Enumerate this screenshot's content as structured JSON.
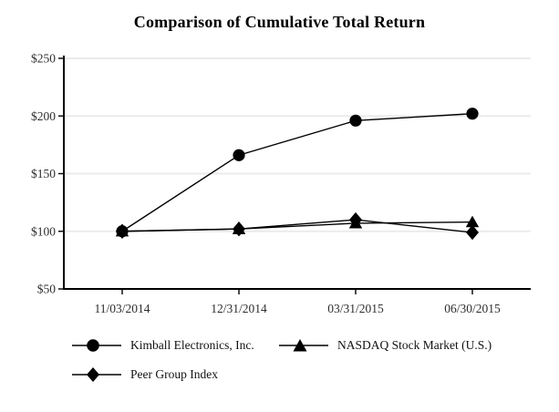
{
  "title": "Comparison of Cumulative Total Return",
  "chart_data": {
    "type": "line",
    "categories": [
      "11/03/2014",
      "12/31/2014",
      "03/31/2015",
      "06/30/2015"
    ],
    "series": [
      {
        "name": "Kimball Electronics, Inc.",
        "marker": "circle",
        "values": [
          100,
          166,
          196,
          202
        ]
      },
      {
        "name": "NASDAQ Stock Market (U.S.)",
        "marker": "triangle",
        "values": [
          100,
          102,
          107,
          108
        ]
      },
      {
        "name": "Peer Group Index",
        "marker": "diamond",
        "values": [
          100,
          102,
          110,
          99
        ]
      }
    ],
    "title": "Comparison of Cumulative Total Return",
    "xlabel": "",
    "ylabel": "",
    "ylim": [
      50,
      250
    ],
    "y_ticks": [
      {
        "value": 250,
        "label": "$250"
      },
      {
        "value": 200,
        "label": "$200"
      },
      {
        "value": 150,
        "label": "$150"
      },
      {
        "value": 100,
        "label": "$100"
      },
      {
        "value": 50,
        "label": "$50"
      }
    ],
    "grid": "horizontal",
    "legend_position": "bottom",
    "colors": {
      "series": "#000000",
      "gridline": "#ebebeb",
      "axis": "#000000",
      "tick_text": "#2e2e2e",
      "background": "#ffffff"
    }
  }
}
